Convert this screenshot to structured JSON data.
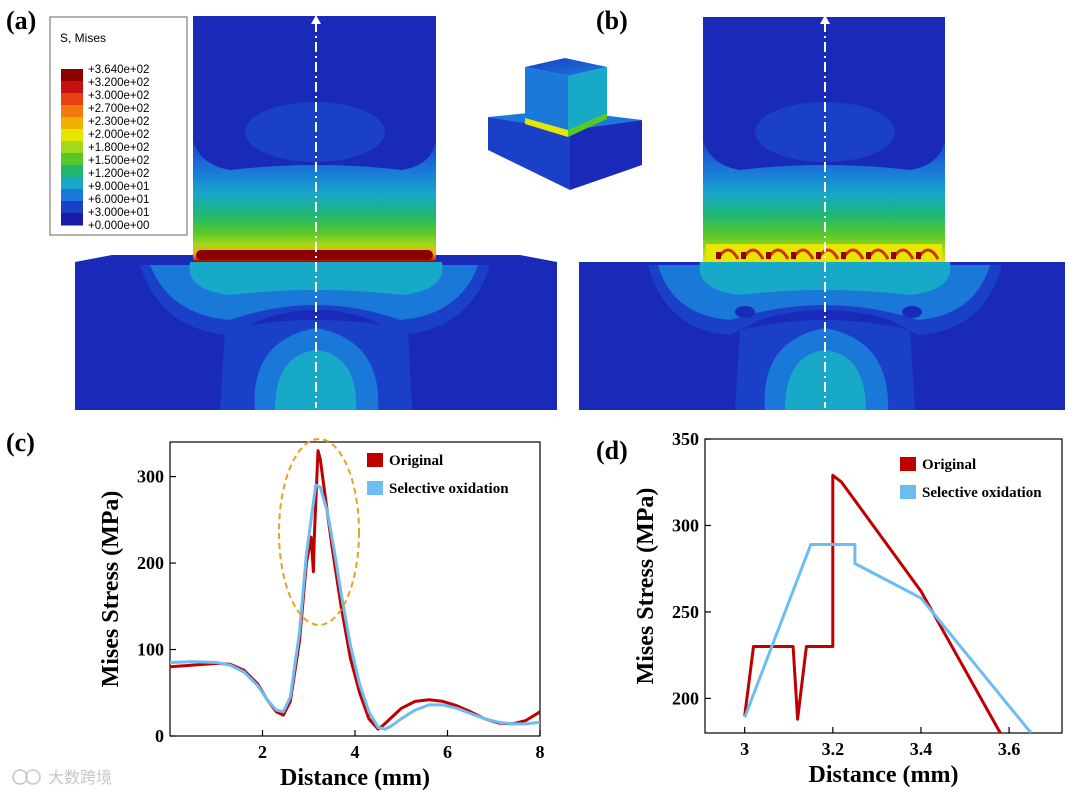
{
  "panels": {
    "a": "(a)",
    "b": "(b)",
    "c": "(c)",
    "d": "(d)"
  },
  "colorbar": {
    "title": "S, Mises",
    "labels": [
      "+3.640e+02",
      "+3.200e+02",
      "+3.000e+02",
      "+2.700e+02",
      "+2.300e+02",
      "+2.000e+02",
      "+1.800e+02",
      "+1.500e+02",
      "+1.200e+02",
      "+9.000e+01",
      "+6.000e+01",
      "+3.000e+01",
      "+0.000e+00"
    ],
    "colors": [
      "#8b0000",
      "#c81010",
      "#e84010",
      "#f07a10",
      "#f0b000",
      "#e6e600",
      "#a6d81a",
      "#58c828",
      "#20b870",
      "#18a8c8",
      "#1a78d8",
      "#1a40c8",
      "#1a1aa8"
    ]
  },
  "colors": {
    "original": "#c00000",
    "selective": "#6cbdf0",
    "ellipse": "#e8a020",
    "fem_base": "#1a2ab8"
  },
  "watermark": "大数跨境",
  "chart_data": [
    {
      "panel": "c",
      "type": "line",
      "xlabel": "Distance (mm)",
      "ylabel": "Mises Stress (MPa)",
      "xlim": [
        0,
        8
      ],
      "ylim": [
        0,
        340
      ],
      "xticks": [
        2,
        4,
        6,
        8
      ],
      "yticks": [
        0,
        100,
        200,
        300
      ],
      "legend_position": "top-right",
      "series": [
        {
          "name": "Original",
          "color": "#c00000",
          "x": [
            0,
            0.5,
            1.0,
            1.3,
            1.6,
            1.9,
            2.1,
            2.3,
            2.45,
            2.6,
            2.8,
            2.95,
            3.05,
            3.1,
            3.12,
            3.2,
            3.25,
            3.35,
            3.5,
            3.7,
            3.9,
            4.1,
            4.3,
            4.5,
            4.6,
            4.8,
            5.0,
            5.3,
            5.6,
            5.9,
            6.2,
            6.5,
            6.8,
            7.1,
            7.4,
            7.7,
            8.0
          ],
          "y": [
            80,
            82,
            84,
            83,
            76,
            60,
            42,
            28,
            24,
            40,
            110,
            200,
            230,
            190,
            230,
            330,
            320,
            280,
            220,
            150,
            90,
            50,
            20,
            8,
            12,
            22,
            32,
            40,
            42,
            40,
            35,
            28,
            20,
            15,
            14,
            18,
            28
          ]
        },
        {
          "name": "Selective oxidation",
          "color": "#6cbdf0",
          "x": [
            0,
            0.5,
            1.0,
            1.3,
            1.6,
            1.9,
            2.1,
            2.3,
            2.45,
            2.6,
            2.8,
            2.95,
            3.1,
            3.15,
            3.25,
            3.3,
            3.4,
            3.55,
            3.7,
            3.9,
            4.1,
            4.3,
            4.5,
            4.65,
            4.8,
            5.0,
            5.3,
            5.6,
            5.9,
            6.2,
            6.5,
            6.8,
            7.1,
            7.4,
            7.7,
            8.0
          ],
          "y": [
            85,
            86,
            85,
            82,
            74,
            58,
            42,
            30,
            28,
            45,
            120,
            210,
            270,
            290,
            288,
            278,
            260,
            215,
            165,
            105,
            60,
            28,
            10,
            8,
            12,
            20,
            30,
            36,
            36,
            32,
            26,
            20,
            16,
            14,
            14,
            16
          ]
        }
      ]
    },
    {
      "panel": "d",
      "type": "line",
      "xlabel": "Distance (mm)",
      "ylabel": "Mises Stress (MPa)",
      "xlim": [
        2.91,
        3.72
      ],
      "ylim": [
        180,
        350
      ],
      "xticks": [
        3.0,
        3.2,
        3.4,
        3.6
      ],
      "yticks": [
        200,
        250,
        300,
        350
      ],
      "legend_position": "top-right",
      "series": [
        {
          "name": "Original",
          "color": "#c00000",
          "x": [
            3.0,
            3.02,
            3.11,
            3.12,
            3.14,
            3.2,
            3.2,
            3.22,
            3.4,
            3.58
          ],
          "y": [
            190,
            230,
            230,
            188,
            230,
            230,
            329,
            325,
            262,
            180
          ],
          "comment_free": true
        },
        {
          "name": "Selective oxidation",
          "color": "#6cbdf0",
          "x": [
            3.0,
            3.15,
            3.25,
            3.25,
            3.4,
            3.65
          ],
          "y": [
            189,
            289,
            289,
            278,
            258,
            180
          ]
        }
      ]
    }
  ]
}
